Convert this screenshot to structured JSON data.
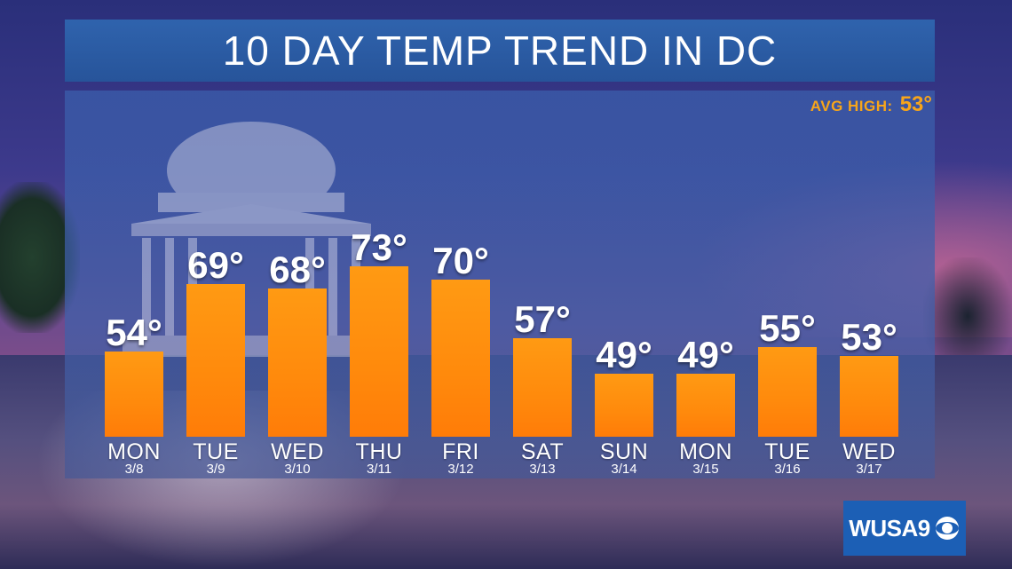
{
  "header": {
    "title": "10 DAY TEMP TREND IN DC"
  },
  "avg_high": {
    "label": "AVG HIGH:",
    "value": "53°"
  },
  "logo": {
    "text": "WUSA9"
  },
  "colors": {
    "bar": "#ff8a0c",
    "title_bar": "#2e5fa8",
    "accent": "#f7a51a",
    "logo_bg": "#1c5fb5"
  },
  "chart_data": {
    "type": "bar",
    "title": "10 DAY TEMP TREND IN DC",
    "unit": "°",
    "categories": [
      "MON",
      "TUE",
      "WED",
      "THU",
      "FRI",
      "SAT",
      "SUN",
      "MON",
      "TUE",
      "WED"
    ],
    "dates": [
      "3/8",
      "3/9",
      "3/10",
      "3/11",
      "3/12",
      "3/13",
      "3/14",
      "3/15",
      "3/16",
      "3/17"
    ],
    "values": [
      54,
      69,
      68,
      73,
      70,
      57,
      49,
      49,
      55,
      53
    ],
    "labels": [
      "54°",
      "69°",
      "68°",
      "73°",
      "70°",
      "57°",
      "49°",
      "49°",
      "55°",
      "53°"
    ],
    "grid": false,
    "legend": "none"
  }
}
